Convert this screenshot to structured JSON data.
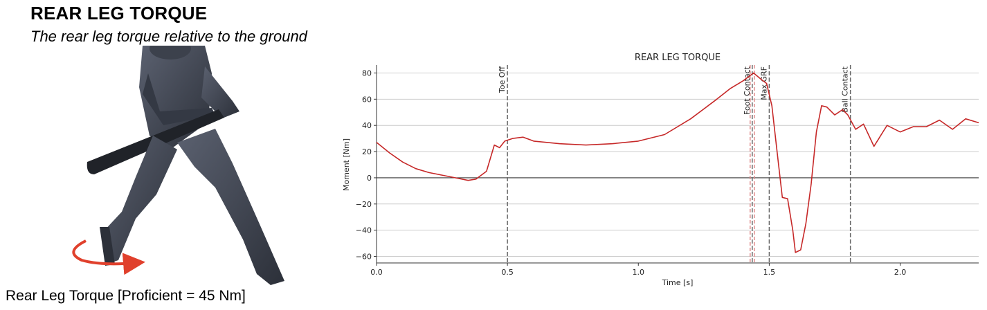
{
  "header": {
    "title": "REAR LEG TORQUE",
    "subtitle": "The rear leg torque relative to the ground"
  },
  "caption": "Rear Leg Torque [Proficient = 45 Nm]",
  "colors": {
    "series": "#c62828",
    "foot_contact_band": "#e08a8a",
    "grid": "#cccccc",
    "event_line": "#666666",
    "body": "#3a3f4a",
    "arrow": "#e0402c"
  },
  "chart_data": {
    "type": "line",
    "title": "REAR LEG TORQUE",
    "xlabel": "Time [s]",
    "ylabel": "Moment [Nm]",
    "xlim": [
      0.0,
      2.3
    ],
    "ylim": [
      -65,
      85
    ],
    "xticks": [
      0.0,
      0.5,
      1.0,
      1.5,
      2.0
    ],
    "xtick_labels": [
      "0.0",
      "0.5",
      "1.0",
      "1.5",
      "2.0"
    ],
    "yticks": [
      -60,
      -40,
      -20,
      0,
      20,
      40,
      60,
      80
    ],
    "ytick_labels": [
      "−60",
      "−40",
      "−20",
      "0",
      "20",
      "40",
      "60",
      "80"
    ],
    "grid": "horizontal",
    "events": [
      {
        "name": "Toe Off",
        "x": 0.5
      },
      {
        "name": "Foot Contact",
        "x": 1.435
      },
      {
        "name": "Max GRF",
        "x": 1.5
      },
      {
        "name": "Ball Contact",
        "x": 1.81
      }
    ],
    "series": [
      {
        "x": [
          0.0,
          0.05,
          0.1,
          0.15,
          0.2,
          0.25,
          0.3,
          0.35,
          0.38,
          0.42,
          0.45,
          0.47,
          0.49,
          0.52,
          0.56,
          0.6,
          0.7,
          0.8,
          0.9,
          1.0,
          1.1,
          1.2,
          1.3,
          1.35,
          1.4,
          1.44,
          1.47,
          1.49,
          1.51,
          1.53,
          1.55,
          1.57,
          1.59,
          1.6,
          1.62,
          1.64,
          1.66,
          1.68,
          1.7,
          1.72,
          1.75,
          1.78,
          1.8,
          1.83,
          1.86,
          1.9,
          1.95,
          2.0,
          2.05,
          2.1,
          2.15,
          2.2,
          2.25,
          2.3
        ],
        "y": [
          27,
          19,
          12,
          7,
          4,
          2,
          0,
          -2,
          -1,
          5,
          25,
          23,
          28,
          30,
          31,
          28,
          26,
          25,
          26,
          28,
          33,
          45,
          60,
          68,
          74,
          80,
          75,
          72,
          55,
          20,
          -15,
          -16,
          -40,
          -57,
          -55,
          -35,
          -5,
          35,
          55,
          54,
          48,
          52,
          48,
          37,
          41,
          24,
          40,
          35,
          39,
          39,
          44,
          37,
          45,
          42
        ]
      }
    ]
  }
}
